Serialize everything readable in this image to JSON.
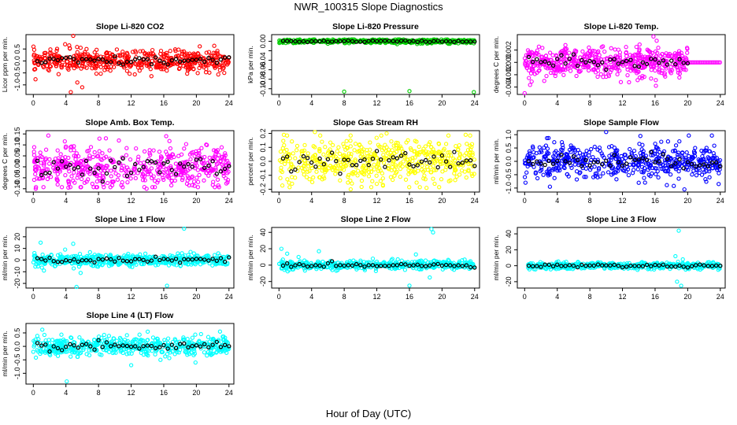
{
  "figure": {
    "title": "NWR_100315  Slope Diagnostics",
    "xlabel": "Hour of Day (UTC)"
  },
  "chart_data": [
    {
      "type": "scatter",
      "title": "Slope Li-820 CO2",
      "ylabel": "Licor ppm per min.",
      "color": "#ff0000",
      "xlim": [
        -0.9,
        24.6
      ],
      "ylim": [
        -1.4,
        1.1
      ],
      "yticks": [
        -1.0,
        -0.5,
        0.0,
        0.5
      ],
      "yticklabels": [
        "-1.0",
        "-0.5",
        "0.0",
        "0.5"
      ],
      "xticks": [
        0,
        4,
        8,
        12,
        16,
        20,
        24
      ],
      "spread": 0.22,
      "center": 0.0,
      "outliers": [
        [
          4.9,
          1.05
        ],
        [
          4.6,
          -1.3
        ],
        [
          5.4,
          -0.9
        ],
        [
          3.9,
          0.7
        ],
        [
          4.4,
          0.65
        ],
        [
          5.8,
          0.55
        ],
        [
          3.1,
          -0.55
        ],
        [
          6.0,
          -1.1
        ]
      ]
    },
    {
      "type": "scatter",
      "title": "Slope Li-820 Pressure",
      "ylabel": "kPa per min.",
      "color": "#00cc00",
      "xlim": [
        -0.9,
        24.6
      ],
      "ylim": [
        -0.112,
        0.014
      ],
      "yticks": [
        -0.1,
        -0.08,
        -0.06,
        -0.04,
        -0.02,
        0.0
      ],
      "yticklabels": [
        "-0.10",
        "-0.08",
        "-0.06",
        "-0.04",
        "",
        "0.00"
      ],
      "xticks": [
        0,
        4,
        8,
        12,
        16,
        20,
        24
      ],
      "spread": 0.002,
      "center": 0.0,
      "outliers": [
        [
          8.0,
          -0.106
        ],
        [
          16.0,
          -0.105
        ],
        [
          23.9,
          -0.107
        ],
        [
          6.0,
          -0.005
        ],
        [
          8.6,
          -0.004
        ],
        [
          14.5,
          -0.006
        ],
        [
          18.3,
          -0.004
        ]
      ]
    },
    {
      "type": "scatter",
      "title": "Slope Li-820 Temp.",
      "ylabel": "degrees C per min.",
      "color": "#ff00ff",
      "xlim": [
        -0.9,
        24.6
      ],
      "ylim": [
        -0.0052,
        0.0045
      ],
      "yticks": [
        -0.004,
        -0.002,
        0.0,
        0.002
      ],
      "yticklabels": [
        "-0.004",
        "-0.002",
        "0.000",
        "0.002"
      ],
      "xticks": [
        0,
        4,
        8,
        12,
        16,
        20,
        24
      ],
      "spread": 0.0011,
      "center": 0.0,
      "xmax": 20.0,
      "outliers": [
        [
          0.0,
          -0.005
        ],
        [
          15.8,
          0.0042
        ],
        [
          16.2,
          0.0035
        ],
        [
          5.0,
          0.0028
        ],
        [
          9.6,
          0.0026
        ],
        [
          14.1,
          0.0029
        ],
        [
          2.4,
          -0.003
        ],
        [
          11.8,
          -0.0032
        ],
        [
          16.1,
          -0.0038
        ]
      ],
      "flat": [
        [
          20.0,
          24.0,
          0.0
        ]
      ]
    },
    {
      "type": "scatter",
      "title": "Slope Amb. Box Temp.",
      "ylabel": "degrees C per min.",
      "color": "#ff00ff",
      "xlim": [
        -0.9,
        24.6
      ],
      "ylim": [
        -0.115,
        0.165
      ],
      "yticks": [
        -0.1,
        -0.05,
        0.0,
        0.05,
        0.1,
        0.15
      ],
      "yticklabels": [
        "-0.10",
        "-0.05",
        "0.00",
        "0.05",
        "0.10",
        "0.15"
      ],
      "xticks": [
        0,
        4,
        8,
        12,
        16,
        20,
        24
      ],
      "spread": 0.045,
      "center": 0.0,
      "outliers": [
        [
          16.3,
          0.14
        ],
        [
          8.9,
          0.13
        ],
        [
          0.3,
          -0.1
        ],
        [
          4.3,
          -0.095
        ],
        [
          10.5,
          0.12
        ],
        [
          13.9,
          -0.1
        ],
        [
          22.7,
          -0.085
        ]
      ]
    },
    {
      "type": "scatter",
      "title": "Slope Gas Stream RH",
      "ylabel": "percent per min.",
      "color": "#ffff00",
      "xlim": [
        -0.9,
        24.6
      ],
      "ylim": [
        -0.22,
        0.22
      ],
      "yticks": [
        -0.2,
        -0.1,
        0.0,
        0.1,
        0.2
      ],
      "yticklabels": [
        "-0.2",
        "-0.1",
        "0.0",
        "0.1",
        "0.2"
      ],
      "xticks": [
        0,
        4,
        8,
        12,
        16,
        20,
        24
      ],
      "spread": 0.08,
      "center": 0.0,
      "outliers": [
        [
          0.6,
          0.19
        ],
        [
          4.4,
          0.21
        ],
        [
          8.8,
          -0.2
        ],
        [
          13.2,
          0.2
        ],
        [
          18.1,
          -0.19
        ],
        [
          22.9,
          0.19
        ]
      ]
    },
    {
      "type": "scatter",
      "title": "Slope Sample Flow",
      "ylabel": "ml/min per min.",
      "color": "#0000ff",
      "xlim": [
        -0.9,
        24.6
      ],
      "ylim": [
        -1.15,
        1.15
      ],
      "yticks": [
        -1.0,
        -0.5,
        0.0,
        0.5,
        1.0
      ],
      "yticklabels": [
        "-1.0",
        "-0.5",
        "0.0",
        "0.5",
        "1.0"
      ],
      "xticks": [
        0,
        4,
        8,
        12,
        16,
        20,
        24
      ],
      "spread": 0.3,
      "center": 0.0,
      "outliers": [
        [
          19.6,
          -1.05
        ],
        [
          10.0,
          1.1
        ],
        [
          3.1,
          -0.95
        ],
        [
          14.2,
          0.95
        ],
        [
          0.1,
          -0.8
        ],
        [
          23.8,
          -0.85
        ]
      ]
    },
    {
      "type": "scatter",
      "title": "Slope Line 1 Flow",
      "ylabel": "ml/min per min.",
      "color": "#00ffff",
      "xlim": [
        -0.9,
        24.6
      ],
      "ylim": [
        -24,
        28
      ],
      "yticks": [
        -20,
        -10,
        0,
        10,
        20
      ],
      "yticklabels": [
        "-20",
        "-10",
        "0",
        "10",
        "20"
      ],
      "xticks": [
        0,
        4,
        8,
        12,
        16,
        20,
        24
      ],
      "spread": 2.5,
      "center": 0.0,
      "outliers": [
        [
          18.5,
          27
        ],
        [
          16.4,
          -22
        ],
        [
          5.3,
          -23
        ],
        [
          4.9,
          14
        ],
        [
          0.9,
          15
        ],
        [
          1.3,
          -9
        ],
        [
          5.8,
          -11
        ],
        [
          3.9,
          9
        ]
      ]
    },
    {
      "type": "scatter",
      "title": "Slope Line 2 Flow",
      "ylabel": "ml/min per min.",
      "color": "#00ffff",
      "xlim": [
        -0.9,
        24.6
      ],
      "ylim": [
        -28,
        46
      ],
      "yticks": [
        -20,
        0,
        20,
        40
      ],
      "yticklabels": [
        "-20",
        "0",
        "20",
        "40"
      ],
      "xticks": [
        0,
        4,
        8,
        12,
        16,
        20,
        24
      ],
      "spread": 2.5,
      "center": 0.0,
      "outliers": [
        [
          18.7,
          44
        ],
        [
          18.9,
          40
        ],
        [
          16.0,
          -25
        ],
        [
          18.5,
          -15
        ],
        [
          0.3,
          20
        ],
        [
          1.0,
          14
        ],
        [
          4.9,
          17
        ],
        [
          2.4,
          10
        ],
        [
          16.8,
          13
        ]
      ]
    },
    {
      "type": "scatter",
      "title": "Slope Line 3 Flow",
      "ylabel": "ml/min per min.",
      "color": "#00ffff",
      "xlim": [
        -0.9,
        24.6
      ],
      "ylim": [
        -28,
        48
      ],
      "yticks": [
        -20,
        0,
        20,
        40
      ],
      "yticklabels": [
        "-20",
        "0",
        "20",
        "40"
      ],
      "xticks": [
        0,
        4,
        8,
        12,
        16,
        20,
        24
      ],
      "spread": 2.0,
      "center": 0.0,
      "outliers": [
        [
          18.9,
          44
        ],
        [
          18.7,
          -20
        ],
        [
          19.2,
          -25
        ],
        [
          18.5,
          12
        ],
        [
          19.4,
          8
        ]
      ]
    },
    {
      "type": "scatter",
      "title": "Slope Line 4 (LT) Flow",
      "ylabel": "ml/min per min.",
      "color": "#00ffff",
      "xlim": [
        -0.9,
        24.6
      ],
      "ylim": [
        -1.4,
        0.85
      ],
      "yticks": [
        -1.0,
        -0.5,
        0.0,
        0.5
      ],
      "yticklabels": [
        "-1.0",
        "-0.5",
        "0.0",
        "0.5"
      ],
      "xticks": [
        0,
        4,
        8,
        12,
        16,
        20,
        24
      ],
      "spread": 0.18,
      "center": 0.0,
      "outliers": [
        [
          4.1,
          -1.3
        ],
        [
          12.0,
          -0.7
        ],
        [
          19.9,
          -0.6
        ],
        [
          1.1,
          0.62
        ],
        [
          22.9,
          0.55
        ],
        [
          15.6,
          -0.5
        ]
      ]
    }
  ]
}
